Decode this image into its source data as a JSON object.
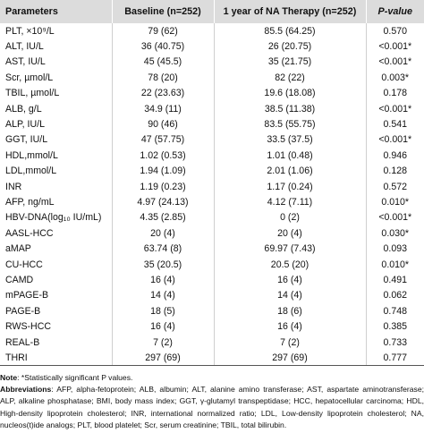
{
  "table": {
    "headers": [
      "Parameters",
      "Baseline (n=252)",
      "1 year of NA Therapy (n=252)",
      "P-value"
    ],
    "rows": [
      {
        "param": "PLT, ×10⁹/L",
        "baseline": "79 (62)",
        "therapy": "85.5 (64.25)",
        "p": "0.570"
      },
      {
        "param": "ALT, IU/L",
        "baseline": "36 (40.75)",
        "therapy": "26 (20.75)",
        "p": "<0.001*"
      },
      {
        "param": "AST, IU/L",
        "baseline": "45 (45.5)",
        "therapy": "35 (21.75)",
        "p": "<0.001*"
      },
      {
        "param": "Scr, µmol/L",
        "baseline": "78 (20)",
        "therapy": "82 (22)",
        "p": "0.003*"
      },
      {
        "param": "TBIL, µmol/L",
        "baseline": "22 (23.63)",
        "therapy": "19.6 (18.08)",
        "p": "0.178"
      },
      {
        "param": "ALB, g/L",
        "baseline": "34.9 (11)",
        "therapy": "38.5 (11.38)",
        "p": "<0.001*"
      },
      {
        "param": "ALP, IU/L",
        "baseline": "90 (46)",
        "therapy": "83.5 (55.75)",
        "p": "0.541"
      },
      {
        "param": "GGT, IU/L",
        "baseline": "47 (57.75)",
        "therapy": "33.5 (37.5)",
        "p": "<0.001*"
      },
      {
        "param": "HDL,mmol/L",
        "baseline": "1.02 (0.53)",
        "therapy": "1.01 (0.48)",
        "p": "0.946"
      },
      {
        "param": "LDL,mmol/L",
        "baseline": "1.94 (1.09)",
        "therapy": "2.01 (1.06)",
        "p": "0.128"
      },
      {
        "param": "INR",
        "baseline": "1.19 (0.23)",
        "therapy": "1.17 (0.24)",
        "p": "0.572"
      },
      {
        "param": "AFP, ng/mL",
        "baseline": "4.97 (24.13)",
        "therapy": "4.12 (7.11)",
        "p": "0.010*"
      },
      {
        "param": "HBV-DNA(log₁₀ IU/mL)",
        "baseline": "4.35 (2.85)",
        "therapy": "0 (2)",
        "p": "<0.001*"
      },
      {
        "param": "AASL-HCC",
        "baseline": "20 (4)",
        "therapy": "20 (4)",
        "p": "0.030*"
      },
      {
        "param": "aMAP",
        "baseline": "63.74 (8)",
        "therapy": "69.97 (7.43)",
        "p": "0.093"
      },
      {
        "param": "CU-HCC",
        "baseline": "35 (20.5)",
        "therapy": "20.5 (20)",
        "p": "0.010*"
      },
      {
        "param": "CAMD",
        "baseline": "16 (4)",
        "therapy": "16 (4)",
        "p": "0.491"
      },
      {
        "param": "mPAGE-B",
        "baseline": "14 (4)",
        "therapy": "14 (4)",
        "p": "0.062"
      },
      {
        "param": "PAGE-B",
        "baseline": "18 (5)",
        "therapy": "18 (6)",
        "p": "0.748"
      },
      {
        "param": "RWS-HCC",
        "baseline": "16 (4)",
        "therapy": "16 (4)",
        "p": "0.385"
      },
      {
        "param": "REAL-B",
        "baseline": "7 (2)",
        "therapy": "7 (2)",
        "p": "0.733"
      },
      {
        "param": "THRI",
        "baseline": "297 (69)",
        "therapy": "297 (69)",
        "p": "0.777"
      }
    ]
  },
  "notes": {
    "note_label": "Note",
    "note_text": ": *Statistically significant P values.",
    "abbr_label": "Abbreviations",
    "abbr_text": ": AFP, alpha-fetoprotein; ALB, albumin; ALT, alanine amino transferase; AST, aspartate aminotransferase; ALP, alkaline phosphatase; BMI, body mass index; GGT, γ-glutamyl transpeptidase; HCC, hepatocellular carcinoma; HDL, High-density lipoprotein cholesterol; INR, international normalized ratio; LDL, Low-density lipoprotein cholesterol; NA, nucleos(t)ide analogs; PLT, blood platelet; Scr, serum creatinine; TBIL, total bilirubin."
  }
}
